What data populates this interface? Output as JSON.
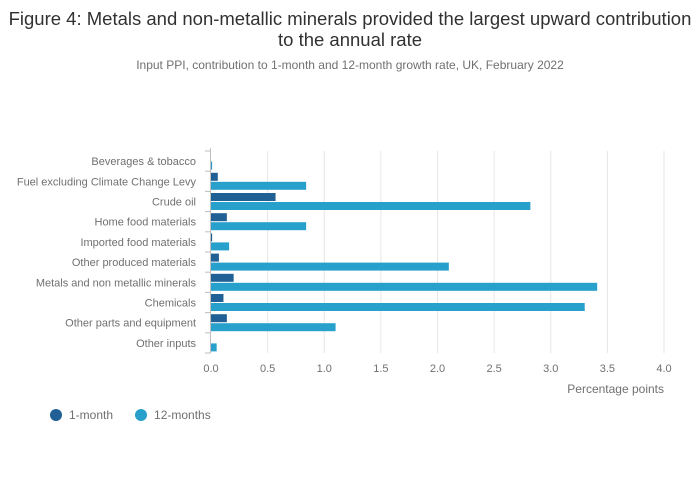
{
  "title": "Figure 4: Metals and non-metallic minerals provided the largest upward contribution to the annual rate",
  "subtitle": "Input PPI, contribution to 1-month and 12-month growth rate, UK, February 2022",
  "colors": {
    "one_month": "#206095",
    "twelve_months": "#27a0cc",
    "grid": "#e6e6e6",
    "axis": "#bebebe",
    "text": "#707071"
  },
  "chart_data": {
    "type": "bar",
    "orientation": "horizontal",
    "categories": [
      "Beverages & tobacco",
      "Fuel excluding Climate Change Levy",
      "Crude oil",
      "Home food materials",
      "Imported food materials",
      "Other produced materials",
      "Metals and non metallic minerals",
      "Chemicals",
      "Other parts and equipment",
      "Other inputs"
    ],
    "series": [
      {
        "name": "1-month",
        "values": [
          0.0,
          0.06,
          0.57,
          0.14,
          0.01,
          0.07,
          0.2,
          0.11,
          0.14,
          0.0
        ]
      },
      {
        "name": "12-months",
        "values": [
          0.01,
          0.84,
          2.82,
          0.84,
          0.16,
          2.1,
          3.41,
          3.3,
          1.1,
          0.05
        ]
      }
    ],
    "xlabel": "Percentage points",
    "ylabel": "",
    "xlim": [
      0,
      4.0
    ],
    "xticks": [
      "0.0",
      "0.5",
      "1.0",
      "1.5",
      "2.0",
      "2.5",
      "3.0",
      "3.5",
      "4.0"
    ],
    "grid": true,
    "legend_placement": "bottom-left"
  }
}
